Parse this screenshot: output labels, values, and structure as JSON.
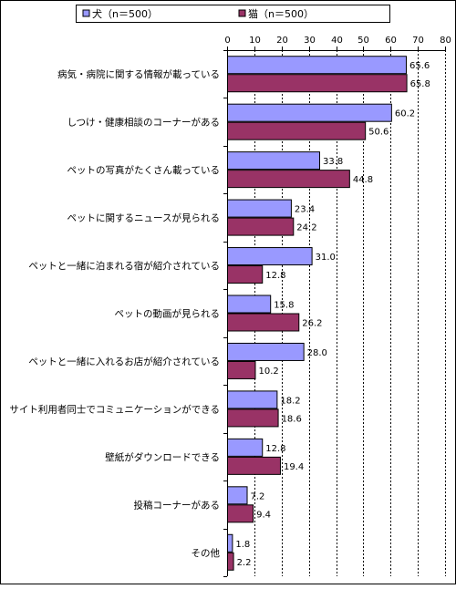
{
  "chart_data": {
    "type": "bar",
    "orientation": "horizontal",
    "categories": [
      "病気・病院に関する情報が載っている",
      "しつけ・健康相談のコーナーがある",
      "ペットの写真がたくさん載っている",
      "ペットに関するニュースが見られる",
      "ペットと一緒に泊まれる宿が紹介されている",
      "ペットの動画が見られる",
      "ペットと一緒に入れるお店が紹介されている",
      "サイト利用者同士でコミュニケーションができる",
      "壁紙がダウンロードできる",
      "投稿コーナーがある",
      "その他"
    ],
    "series": [
      {
        "name": "犬（n＝500）",
        "color": "#9999ff",
        "values": [
          65.6,
          60.2,
          33.8,
          23.4,
          31.0,
          15.8,
          28.0,
          18.2,
          12.8,
          7.2,
          1.8
        ]
      },
      {
        "name": "猫（n＝500）",
        "color": "#993366",
        "values": [
          65.8,
          50.6,
          44.8,
          24.2,
          12.8,
          26.2,
          10.2,
          18.6,
          19.4,
          9.4,
          2.2
        ]
      }
    ],
    "value_labels": [
      [
        "65.6",
        "60.2",
        "33.8",
        "23.4",
        "31.0",
        "15.8",
        "28.0",
        "18.2",
        "12.8",
        "7.2",
        "1.8"
      ],
      [
        "65.8",
        "50.6",
        "44.8",
        "24.2",
        "12.8",
        "26.2",
        "10.2",
        "18.6",
        "19.4",
        "9.4",
        "2.2"
      ]
    ],
    "x_ticks": [
      "0",
      "10",
      "20",
      "30",
      "40",
      "50",
      "60",
      "70",
      "80"
    ],
    "xlim": [
      0,
      80
    ],
    "x_axis_position": "top",
    "grid": "vertical dashed",
    "legend_placement": "top"
  }
}
